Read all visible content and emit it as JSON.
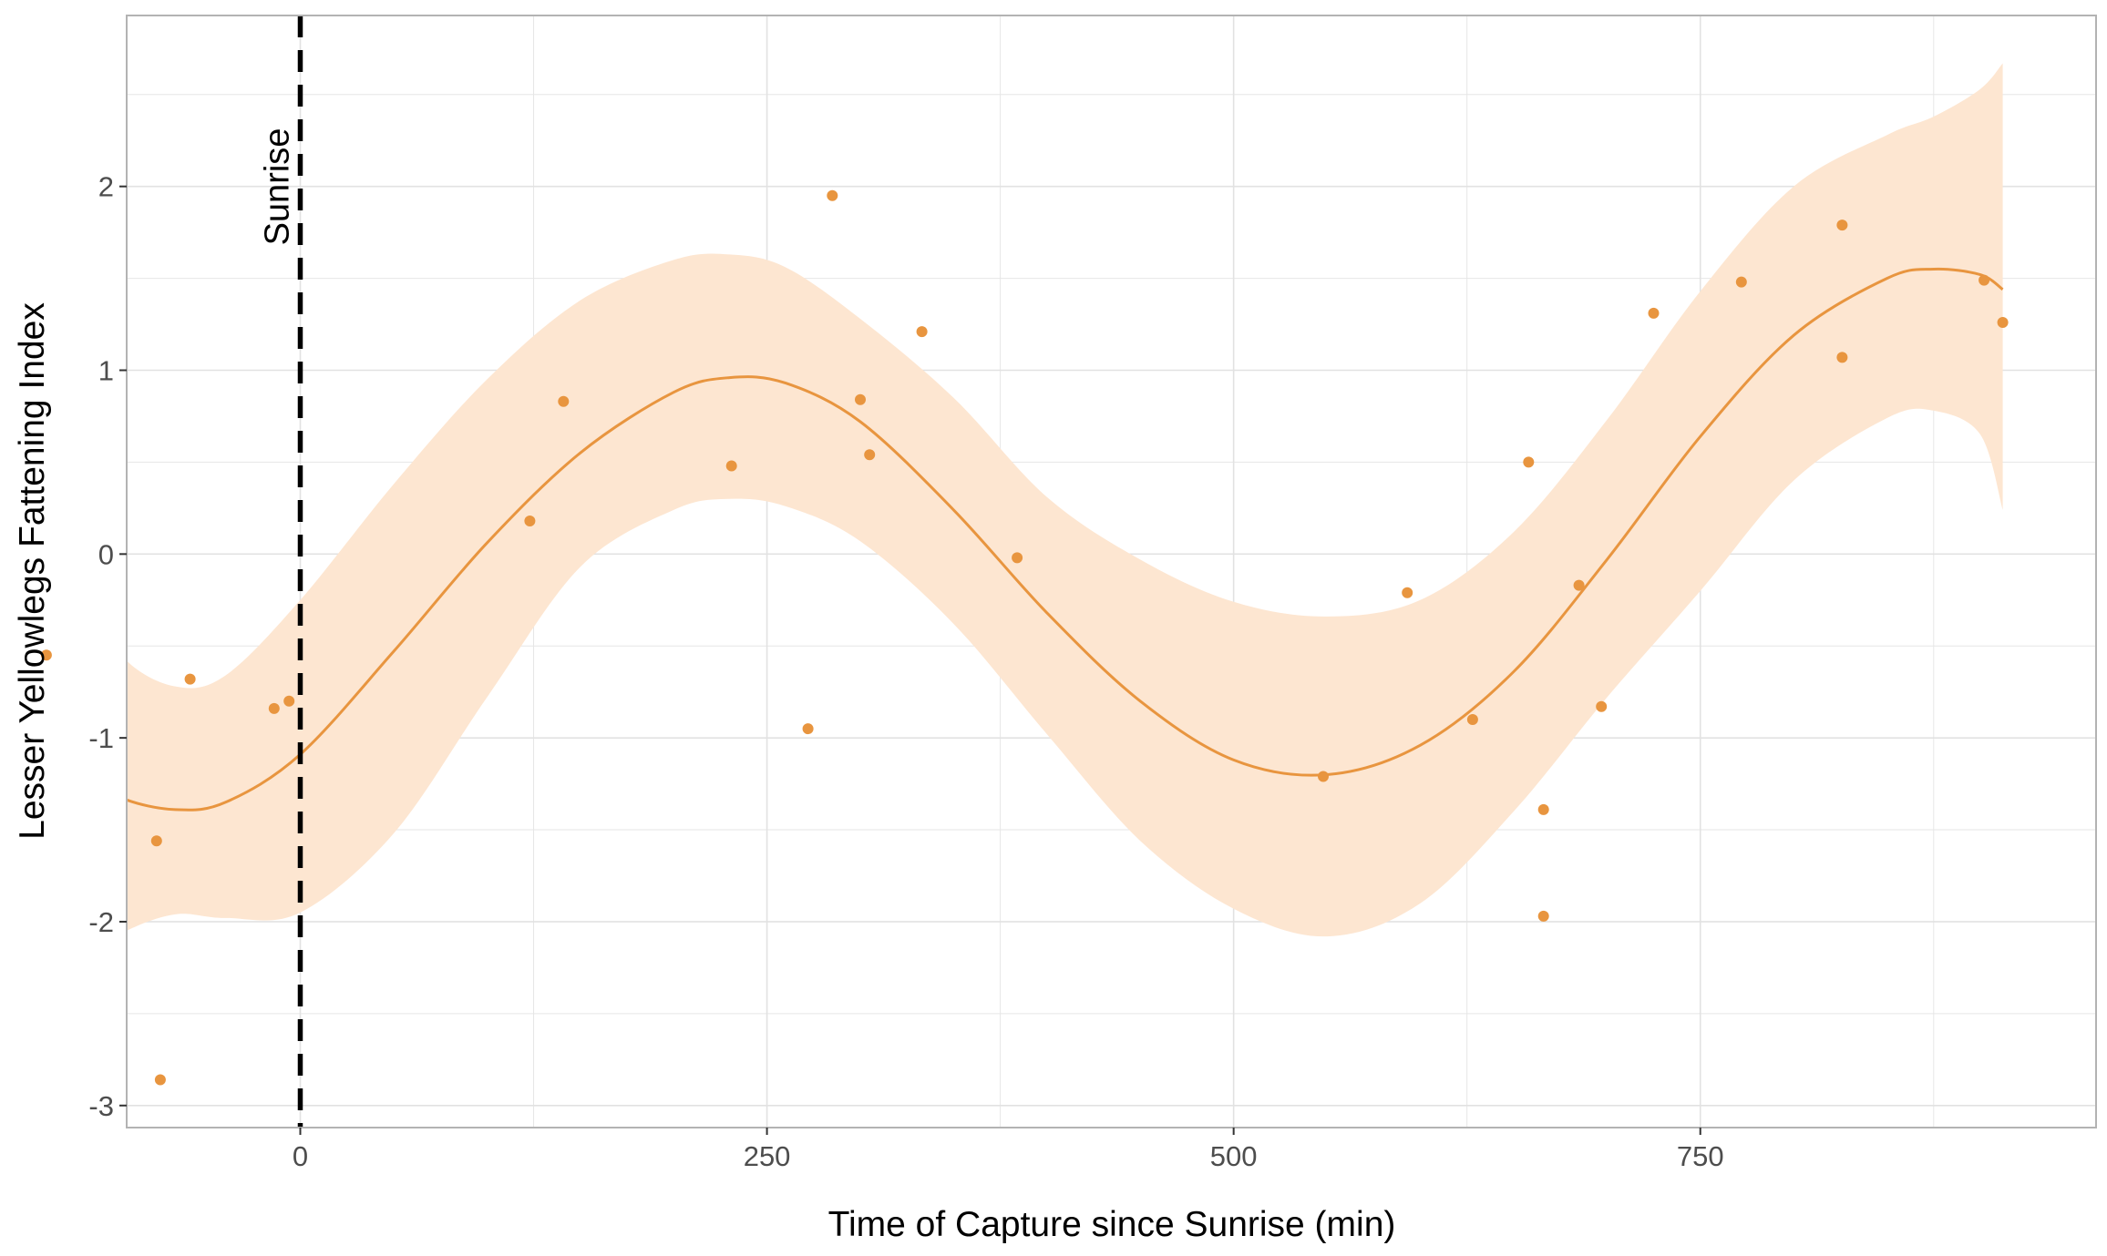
{
  "chart_data": {
    "type": "scatter",
    "title": "",
    "xlabel": "Time of Capture since Sunrise (min)",
    "ylabel": "Lesser Yellowlegs Fattening Index",
    "xlim": [
      -93,
      962
    ],
    "ylim": [
      -3.12,
      2.93
    ],
    "x_ticks": [
      0,
      250,
      500,
      750
    ],
    "x_tick_labels": [
      "0",
      "250",
      "500",
      "750"
    ],
    "y_ticks": [
      -3,
      -2,
      -1,
      0,
      1,
      2
    ],
    "y_tick_labels": [
      "-3",
      "-2",
      "-1",
      "0",
      "1",
      "2"
    ],
    "grid": true,
    "legend": "none",
    "colors": {
      "points": "#E8953F",
      "smooth_line": "#E8953F",
      "ribbon": "#FDE6D1",
      "vline": "#000000",
      "panel_border": "#b3b3b3",
      "grid": "#e6e6e6"
    },
    "vline": {
      "x": 0,
      "style": "dashed",
      "label": "Sunrise"
    },
    "points": [
      {
        "x": -136,
        "y": -0.55
      },
      {
        "x": -77,
        "y": -1.56
      },
      {
        "x": -75,
        "y": -2.86
      },
      {
        "x": -59,
        "y": -0.68
      },
      {
        "x": -14,
        "y": -0.84
      },
      {
        "x": -6,
        "y": -0.8
      },
      {
        "x": 123,
        "y": 0.18
      },
      {
        "x": 141,
        "y": 0.83
      },
      {
        "x": 231,
        "y": 0.48
      },
      {
        "x": 272,
        "y": -0.95
      },
      {
        "x": 285,
        "y": 1.95
      },
      {
        "x": 300,
        "y": 0.84
      },
      {
        "x": 305,
        "y": 0.54
      },
      {
        "x": 333,
        "y": 1.21
      },
      {
        "x": 384,
        "y": -0.02
      },
      {
        "x": 548,
        "y": -1.21
      },
      {
        "x": 593,
        "y": -0.21
      },
      {
        "x": 628,
        "y": -0.9
      },
      {
        "x": 658,
        "y": 0.5
      },
      {
        "x": 666,
        "y": -1.39
      },
      {
        "x": 666,
        "y": -1.97
      },
      {
        "x": 685,
        "y": -0.17
      },
      {
        "x": 697,
        "y": -0.83
      },
      {
        "x": 725,
        "y": 1.31
      },
      {
        "x": 772,
        "y": 1.48
      },
      {
        "x": 826,
        "y": 1.79
      },
      {
        "x": 826,
        "y": 1.07
      },
      {
        "x": 902,
        "y": 1.49
      },
      {
        "x": 912,
        "y": 1.26
      }
    ],
    "smooth": [
      {
        "x": -135,
        "y": -0.97,
        "lo": -2.44,
        "hi": 0.5
      },
      {
        "x": -115,
        "y": -1.2,
        "lo": -2.22,
        "hi": -0.2
      },
      {
        "x": -95,
        "y": -1.33,
        "lo": -2.06,
        "hi": -0.56
      },
      {
        "x": -67,
        "y": -1.39,
        "lo": -1.96,
        "hi": -0.72
      },
      {
        "x": -40,
        "y": -1.35,
        "lo": -1.98,
        "hi": -0.66
      },
      {
        "x": 0,
        "y": -1.09,
        "lo": -1.95,
        "hi": -0.25
      },
      {
        "x": 50,
        "y": -0.53,
        "lo": -1.52,
        "hi": 0.38
      },
      {
        "x": 100,
        "y": 0.06,
        "lo": -0.78,
        "hi": 0.95
      },
      {
        "x": 150,
        "y": 0.55,
        "lo": -0.07,
        "hi": 1.38
      },
      {
        "x": 200,
        "y": 0.88,
        "lo": 0.24,
        "hi": 1.6
      },
      {
        "x": 230,
        "y": 0.96,
        "lo": 0.3,
        "hi": 1.63
      },
      {
        "x": 260,
        "y": 0.93,
        "lo": 0.26,
        "hi": 1.56
      },
      {
        "x": 300,
        "y": 0.72,
        "lo": 0.07,
        "hi": 1.28
      },
      {
        "x": 350,
        "y": 0.24,
        "lo": -0.38,
        "hi": 0.85
      },
      {
        "x": 400,
        "y": -0.32,
        "lo": -0.98,
        "hi": 0.31
      },
      {
        "x": 450,
        "y": -0.8,
        "lo": -1.56,
        "hi": -0.03
      },
      {
        "x": 500,
        "y": -1.12,
        "lo": -1.93,
        "hi": -0.26
      },
      {
        "x": 550,
        "y": -1.2,
        "lo": -2.08,
        "hi": -0.34
      },
      {
        "x": 600,
        "y": -1.04,
        "lo": -1.9,
        "hi": -0.25
      },
      {
        "x": 650,
        "y": -0.64,
        "lo": -1.4,
        "hi": 0.12
      },
      {
        "x": 700,
        "y": -0.03,
        "lo": -0.78,
        "hi": 0.73
      },
      {
        "x": 750,
        "y": 0.64,
        "lo": -0.2,
        "hi": 1.43
      },
      {
        "x": 800,
        "y": 1.19,
        "lo": 0.4,
        "hi": 2.0
      },
      {
        "x": 850,
        "y": 1.5,
        "lo": 0.74,
        "hi": 2.28
      },
      {
        "x": 875,
        "y": 1.55,
        "lo": 0.78,
        "hi": 2.38
      },
      {
        "x": 900,
        "y": 1.52,
        "lo": 0.65,
        "hi": 2.53
      },
      {
        "x": 912,
        "y": 1.44,
        "lo": 0.24,
        "hi": 2.67
      }
    ]
  }
}
